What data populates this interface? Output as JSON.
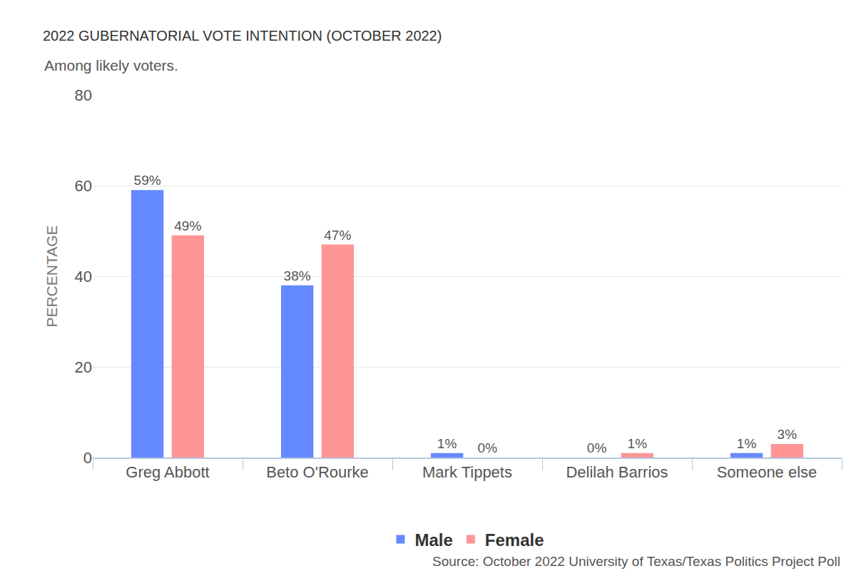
{
  "chart_data": {
    "type": "bar",
    "title": "2022 GUBERNATORIAL VOTE INTENTION (OCTOBER 2022)",
    "subtitle": "Among likely voters.",
    "y_label": "PERCENTAGE",
    "source": "Source: October 2022 University of Texas/Texas Politics Project Poll",
    "categories": [
      "Greg Abbott",
      "Beto O'Rourke",
      "Mark Tippets",
      "Delilah Barrios",
      "Someone else"
    ],
    "series": [
      {
        "name": "Male",
        "color": "#6589ff",
        "values": [
          59,
          38,
          1,
          0,
          1
        ],
        "value_labels": [
          "59%",
          "38%",
          "1%",
          "0%",
          "1%"
        ]
      },
      {
        "name": "Female",
        "color": "#ff9595",
        "values": [
          49,
          47,
          0,
          1,
          3
        ],
        "value_labels": [
          "49%",
          "47%",
          "0%",
          "1%",
          "3%"
        ]
      }
    ],
    "ylim": [
      0,
      80
    ],
    "yticks": [
      0,
      20,
      40,
      60,
      80
    ],
    "grid": true,
    "data_labels": true,
    "legend": "bottom"
  }
}
